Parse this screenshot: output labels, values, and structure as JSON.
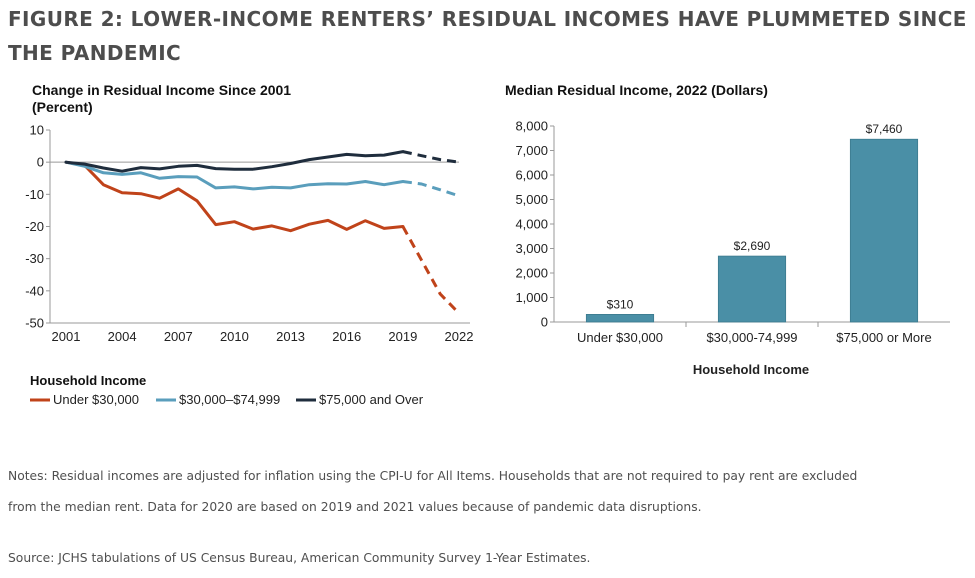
{
  "figure_title": "FIGURE 2: LOWER-INCOME RENTERS’ RESIDUAL INCOMES HAVE PLUMMETED SINCE THE PANDEMIC",
  "colors": {
    "under_30000": "#C0431A",
    "mid_30000_74999": "#5A9EBC",
    "over_75000": "#1F2D3D",
    "bar_fill": "#4A8FA6",
    "axis": "#999999"
  },
  "chart_data": [
    {
      "type": "line",
      "title": "Change in Residual Income Since 2001",
      "subtitle": "(Percent)",
      "xlabel": "",
      "ylabel": "",
      "x": [
        2001,
        2002,
        2003,
        2004,
        2005,
        2006,
        2007,
        2008,
        2009,
        2010,
        2011,
        2012,
        2013,
        2014,
        2015,
        2016,
        2017,
        2018,
        2019,
        2020,
        2021,
        2022
      ],
      "x_tick_labels": [
        "2001",
        "2004",
        "2007",
        "2010",
        "2013",
        "2016",
        "2019",
        "2022"
      ],
      "ylim": [
        -50,
        10
      ],
      "y_tick_labels": [
        "10",
        "0",
        "-10",
        "-20",
        "-30",
        "-40",
        "-50"
      ],
      "dashed_from_x": 2019,
      "legend_title": "Household Income",
      "legend_position": "bottom",
      "series": [
        {
          "name": "Under $30,000",
          "color": "#C0431A",
          "values": [
            0,
            -1,
            -7,
            -9.5,
            -9.8,
            -11.2,
            -8.3,
            -12,
            -19.4,
            -18.5,
            -20.8,
            -19.8,
            -21.3,
            -19.3,
            -18.1,
            -20.9,
            -18.2,
            -20.6,
            -20,
            -30.5,
            -41,
            -47
          ]
        },
        {
          "name": "$30,000–$74,999",
          "color": "#5A9EBC",
          "values": [
            0,
            -1.3,
            -3.3,
            -3.8,
            -3.3,
            -5,
            -4.5,
            -4.6,
            -8,
            -7.7,
            -8.3,
            -7.8,
            -8,
            -7,
            -6.7,
            -6.8,
            -6,
            -7,
            -6,
            -6.8,
            -8.6,
            -10.5
          ]
        },
        {
          "name": "$75,000 and Over",
          "color": "#1F2D3D",
          "values": [
            0,
            -0.6,
            -1.8,
            -2.8,
            -1.7,
            -2.1,
            -1.3,
            -1,
            -2,
            -2.2,
            -2.2,
            -1.4,
            -0.4,
            0.8,
            1.6,
            2.4,
            2,
            2.2,
            3.3,
            2,
            0.8,
            0
          ]
        }
      ]
    },
    {
      "type": "bar",
      "title": "Median Residual Income, 2022 (Dollars)",
      "xlabel": "Household Income",
      "ylabel": "",
      "categories": [
        "Under $30,000",
        "$30,000-74,999",
        "$75,000 or More"
      ],
      "values": [
        310,
        2690,
        7460
      ],
      "value_labels": [
        "$310",
        "$2,690",
        "$7,460"
      ],
      "ylim": [
        0,
        8000
      ],
      "y_tick_labels": [
        "8,000",
        "7,000",
        "6,000",
        "5,000",
        "4,000",
        "3,000",
        "2,000",
        "1,000",
        "0"
      ]
    }
  ],
  "notes": {
    "line1": "Notes: Residual incomes are adjusted for inflation using the CPI-U for All Items. Households that are not required to pay rent are excluded",
    "line2": "from the median rent. Data for 2020 are based on 2019 and 2021 values because of pandemic data disruptions.",
    "source": "Source: JCHS tabulations of US Census Bureau, American Community Survey 1-Year Estimates."
  }
}
